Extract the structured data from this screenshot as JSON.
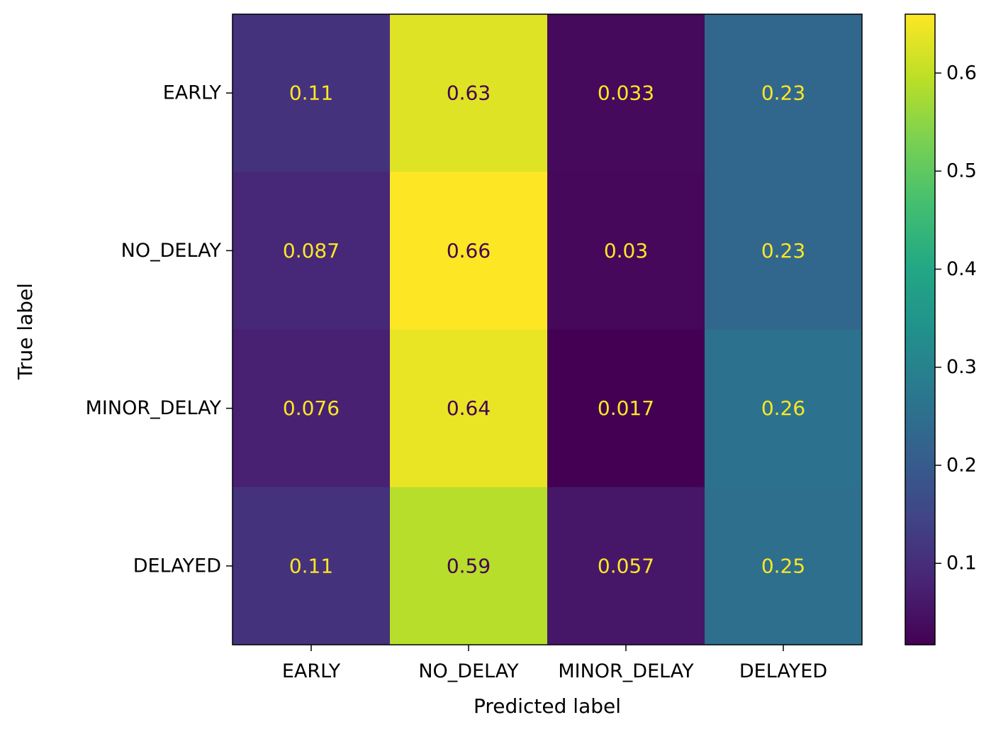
{
  "chart_data": {
    "type": "heatmap",
    "title": "",
    "xlabel": "Predicted label",
    "ylabel": "True label",
    "x_categories": [
      "EARLY",
      "NO_DELAY",
      "MINOR_DELAY",
      "DELAYED"
    ],
    "y_categories": [
      "EARLY",
      "NO_DELAY",
      "MINOR_DELAY",
      "DELAYED"
    ],
    "values": [
      [
        0.11,
        0.63,
        0.033,
        0.23
      ],
      [
        0.087,
        0.66,
        0.03,
        0.23
      ],
      [
        0.076,
        0.64,
        0.017,
        0.26
      ],
      [
        0.11,
        0.59,
        0.057,
        0.25
      ]
    ],
    "value_labels": [
      [
        "0.11",
        "0.63",
        "0.033",
        "0.23"
      ],
      [
        "0.087",
        "0.66",
        "0.03",
        "0.23"
      ],
      [
        "0.076",
        "0.64",
        "0.017",
        "0.26"
      ],
      [
        "0.11",
        "0.59",
        "0.057",
        "0.25"
      ]
    ],
    "colormap": "viridis",
    "colorbar": {
      "range": [
        0.017,
        0.66
      ],
      "ticks": [
        0.1,
        0.2,
        0.3,
        0.4,
        0.5,
        0.6
      ],
      "tick_labels": [
        "0.1",
        "0.2",
        "0.3",
        "0.4",
        "0.5",
        "0.6"
      ]
    },
    "grid": false
  }
}
